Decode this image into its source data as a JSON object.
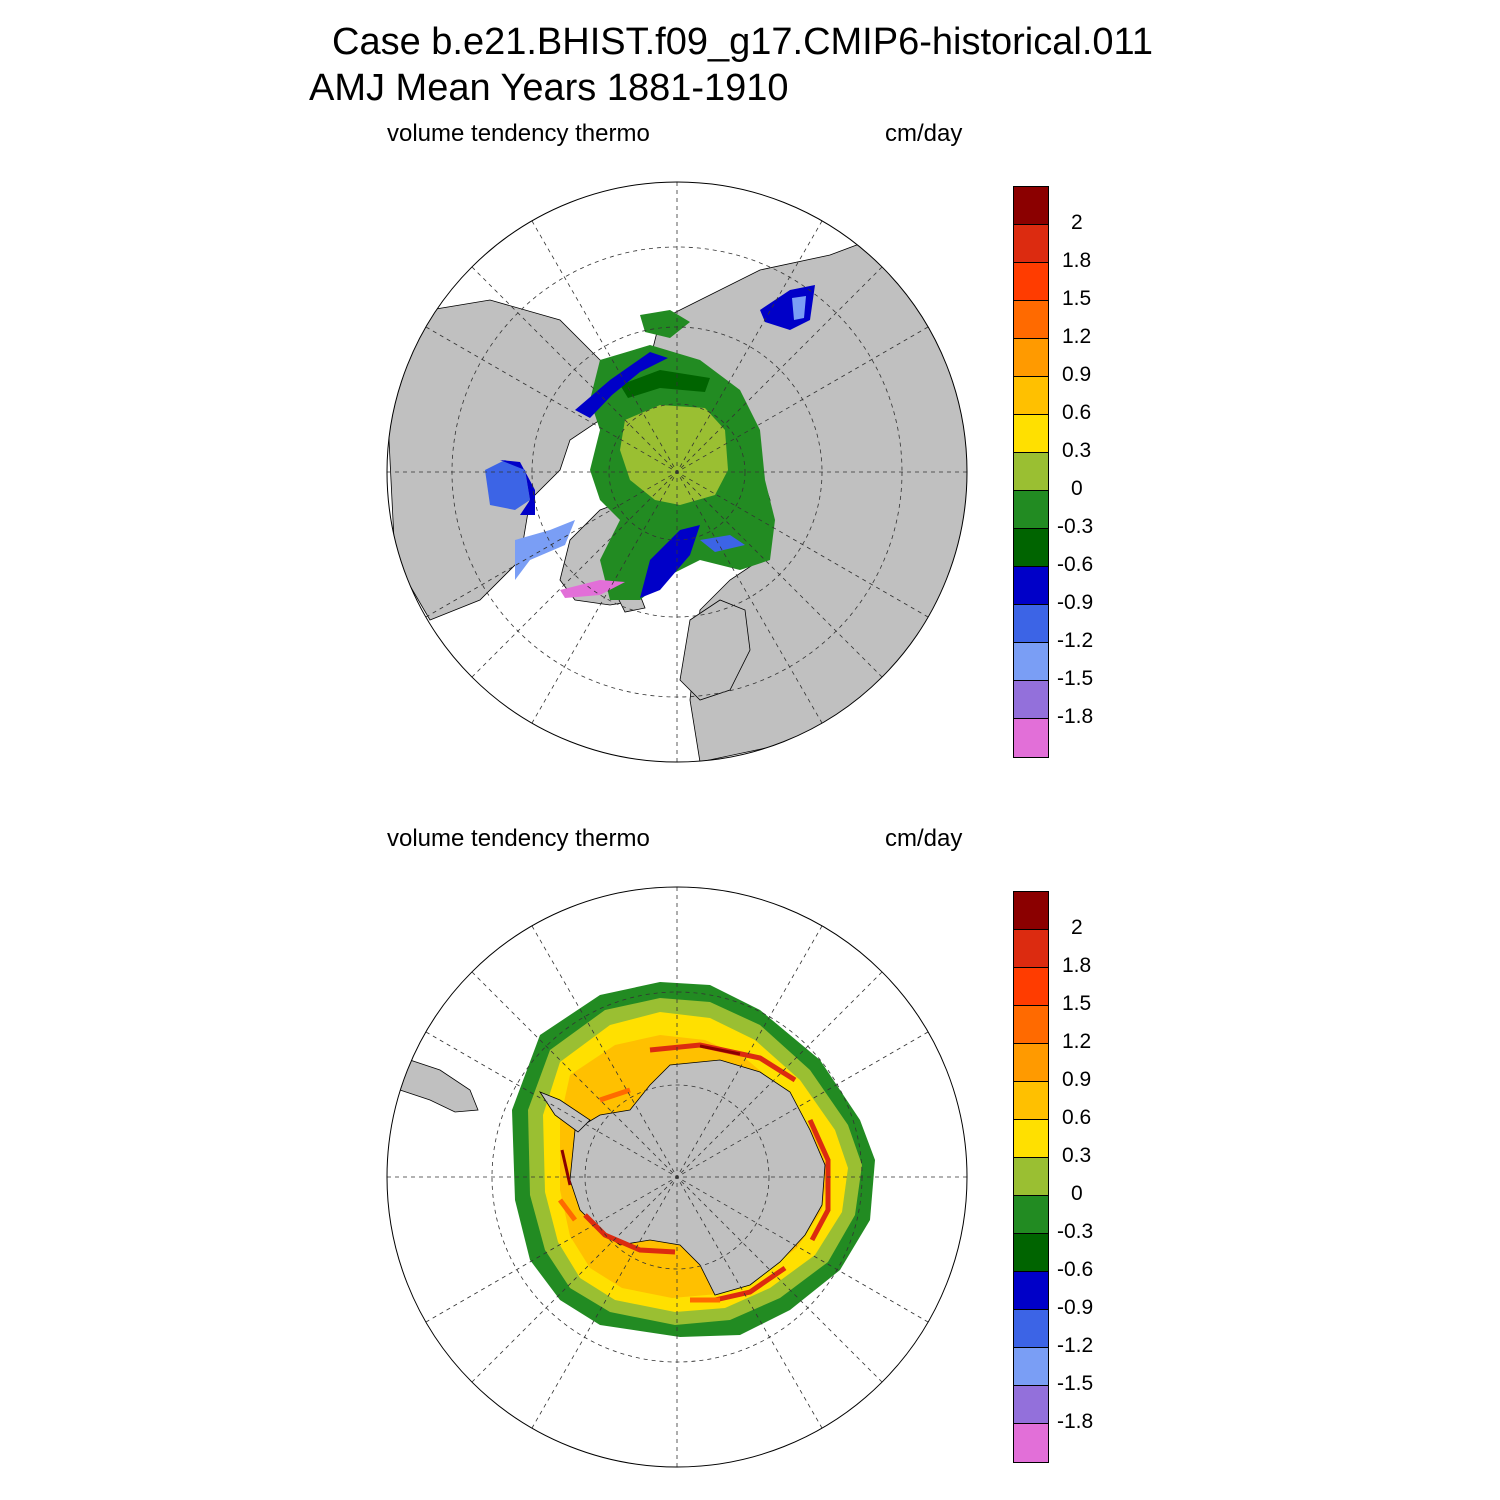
{
  "title": {
    "line1": "Case b.e21.BHIST.f09_g17.CMIP6-historical.011",
    "line2": "AMJ Mean   Years 1881-1910"
  },
  "colors": {
    "land": "#c0c0c0",
    "no_ice_ocean": "#ffffff",
    "levels": [
      "#e26fd8",
      "#9370db",
      "#7a9ef5",
      "#3c64e6",
      "#0000c8",
      "#006400",
      "#228b22",
      "#9abf32",
      "#ffe000",
      "#ffc000",
      "#ff9a00",
      "#ff6a00",
      "#ff3c00",
      "#dc2b10",
      "#8b0000"
    ]
  },
  "panels": [
    {
      "id": "north",
      "hemisphere": "Arctic",
      "variable_label": "volume tendency thermo",
      "units": "cm/day",
      "colorbar": {
        "levels": [
          "-1.8",
          "-1.5",
          "-1.2",
          "-0.9",
          "-0.6",
          "-0.3",
          "0",
          "0.3",
          "0.6",
          "0.9",
          "1.2",
          "1.5",
          "1.8",
          "2"
        ]
      }
    },
    {
      "id": "south",
      "hemisphere": "Antarctic",
      "variable_label": "volume tendency thermo",
      "units": "cm/day",
      "colorbar": {
        "levels": [
          "-1.8",
          "-1.5",
          "-1.2",
          "-0.9",
          "-0.6",
          "-0.3",
          "0",
          "0.3",
          "0.6",
          "0.9",
          "1.2",
          "1.5",
          "1.8",
          "2"
        ]
      }
    }
  ]
}
